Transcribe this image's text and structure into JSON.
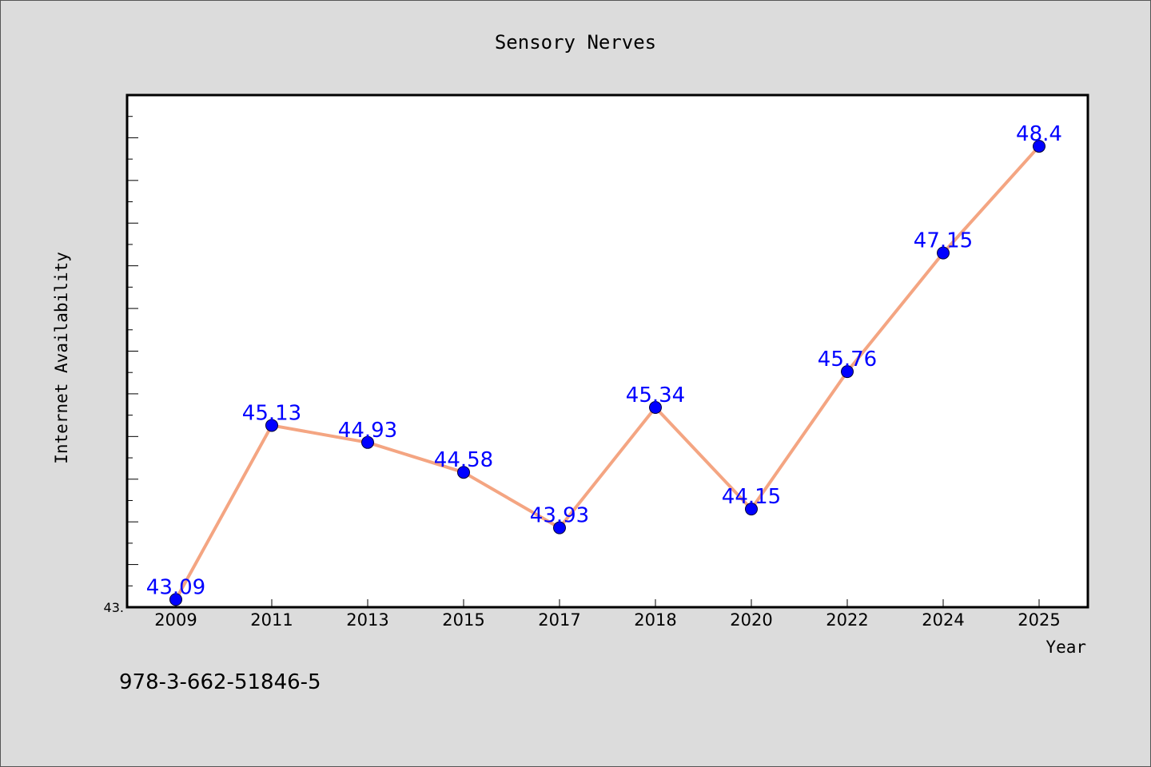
{
  "chart_data": {
    "type": "line",
    "title": "Sensory Nerves",
    "xlabel": "Year",
    "ylabel": "Internet Availability",
    "categories": [
      "2009",
      "2011",
      "2013",
      "2015",
      "2017",
      "2018",
      "2020",
      "2022",
      "2024",
      "2025"
    ],
    "series": [
      {
        "values": [
          43.09,
          45.13,
          44.93,
          44.58,
          43.93,
          45.34,
          44.15,
          45.76,
          47.15,
          48.4
        ],
        "data_labels": [
          "43.09",
          "45.13",
          "44.93",
          "44.58",
          "43.93",
          "45.34",
          "44.15",
          "45.76",
          "47.15",
          "48.4"
        ],
        "line_color": "#f4a582",
        "marker_color": "#0000ff",
        "label_color": "#0000ff"
      }
    ],
    "ylim": [
      43.0,
      49.0
    ],
    "y_tick_labels": [
      "43."
    ],
    "grid": false,
    "legend": "none"
  },
  "footer_text": "978-3-662-51846-5",
  "colors": {
    "background": "#dcdcdc",
    "plot_background": "#ffffff",
    "axis": "#000000"
  }
}
